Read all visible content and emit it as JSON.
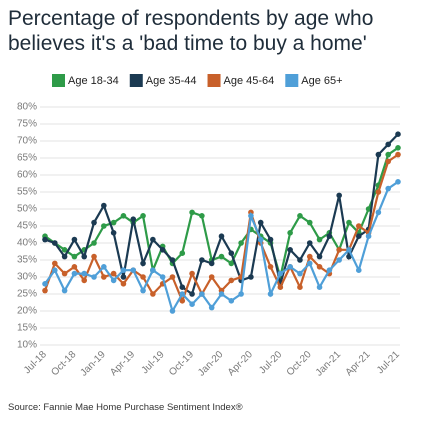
{
  "chart_data": {
    "type": "line",
    "title": "Percentage of respondents by age who believes it's a 'bad time to buy a home'",
    "source": "Source: Fannie Mae Home Purchase Sentiment Index®",
    "categories": [
      "Jul-18",
      null,
      null,
      "Oct-18",
      null,
      null,
      "Jan-19",
      null,
      null,
      "Apr-19",
      null,
      null,
      "Jul-19",
      null,
      null,
      "Oct-19",
      null,
      null,
      "Jan-20",
      null,
      null,
      "Apr-20",
      null,
      null,
      "Jul-20",
      null,
      null,
      "Oct-20",
      null,
      null,
      "Jan-21",
      null,
      null,
      "Apr-21",
      null,
      null,
      "Jul-21"
    ],
    "series": [
      {
        "name": "Age 18-34",
        "color": "#2e9b48",
        "values": [
          42,
          40,
          38,
          36,
          38,
          40,
          45,
          46,
          48,
          46,
          48,
          32,
          39,
          34,
          37,
          49,
          48,
          35,
          36,
          34,
          40,
          44,
          42,
          40,
          30,
          43,
          48,
          46,
          41,
          43,
          38,
          46,
          43,
          50,
          57,
          66,
          68
        ]
      },
      {
        "name": "Age 35-44",
        "color": "#1b3a52",
        "values": [
          41,
          40,
          36,
          41,
          36,
          46,
          51,
          43,
          30,
          47,
          34,
          41,
          38,
          35,
          27,
          25,
          35,
          34,
          42,
          37,
          29,
          30,
          46,
          41,
          28,
          38,
          35,
          40,
          36,
          42,
          54,
          36,
          42,
          44,
          66,
          69,
          72
        ]
      },
      {
        "name": "Age 45-64",
        "color": "#c8602a",
        "values": [
          26,
          34,
          31,
          33,
          29,
          36,
          30,
          31,
          28,
          32,
          30,
          25,
          28,
          30,
          23,
          31,
          25,
          30,
          26,
          29,
          30,
          49,
          40,
          33,
          27,
          33,
          27,
          36,
          33,
          31,
          38,
          38,
          45,
          43,
          55,
          64,
          66
        ]
      },
      {
        "name": "Age 65+",
        "color": "#4f9fd8",
        "values": [
          28,
          32,
          26,
          31,
          31,
          30,
          33,
          29,
          32,
          32,
          26,
          32,
          30,
          20,
          25,
          22,
          25,
          21,
          25,
          23,
          25,
          48,
          41,
          25,
          31,
          33,
          31,
          34,
          27,
          32,
          35,
          38,
          32,
          42,
          49,
          56,
          58
        ]
      }
    ],
    "ylim": [
      10,
      80
    ],
    "yticks": [
      {
        "value": 10,
        "label": "10%"
      },
      {
        "value": 15,
        "label": "15%"
      },
      {
        "value": 20,
        "label": "20%"
      },
      {
        "value": 25,
        "label": "25%"
      },
      {
        "value": 30,
        "label": "30%"
      },
      {
        "value": 35,
        "label": "35%"
      },
      {
        "value": 40,
        "label": "40%"
      },
      {
        "value": 45,
        "label": "45%"
      },
      {
        "value": 50,
        "label": "50%"
      },
      {
        "value": 55,
        "label": "55%"
      },
      {
        "value": 60,
        "label": "60%"
      },
      {
        "value": 65,
        "label": "65%"
      },
      {
        "value": 70,
        "label": "70%"
      },
      {
        "value": 75,
        "label": "75%"
      },
      {
        "value": 80,
        "label": "80%"
      }
    ],
    "grid": true,
    "legend": "top"
  }
}
